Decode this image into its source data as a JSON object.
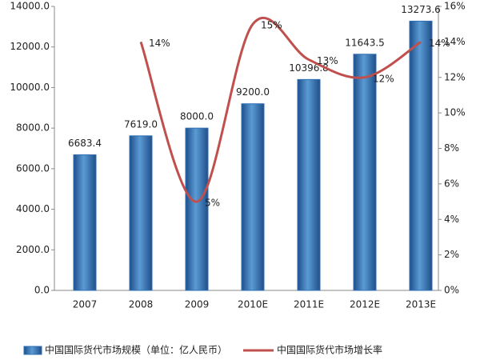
{
  "chart_data": {
    "type": "bar-line",
    "categories": [
      "2007",
      "2008",
      "2009",
      "2010E",
      "2011E",
      "2012E",
      "2013E"
    ],
    "series": [
      {
        "name": "中国国际货代市场规模（单位：亿人民币）",
        "type": "bar",
        "color": "#2f6fb5",
        "values": [
          6683.4,
          7619,
          8000,
          9200,
          10396.8,
          11643.5,
          13273.6
        ],
        "value_labels": [
          "6683.4",
          "7619.0",
          "8000.0",
          "9200.0",
          "10396.8",
          "11643.5",
          "13273.6"
        ]
      },
      {
        "name": "中国国际货代市场增长率",
        "type": "line",
        "axis": "y2",
        "color": "#c0504d",
        "values": [
          null,
          14,
          5,
          15,
          13,
          12,
          14
        ],
        "value_labels": [
          null,
          "14%",
          "5%",
          "15%",
          "13%",
          "12%",
          "14%"
        ]
      }
    ],
    "ylim": [
      0,
      14000
    ],
    "yticks": [
      {
        "value": 0,
        "label": "0.0"
      },
      {
        "value": 2000,
        "label": "2000.0"
      },
      {
        "value": 4000,
        "label": "4000.0"
      },
      {
        "value": 6000,
        "label": "6000.0"
      },
      {
        "value": 8000,
        "label": "8000.0"
      },
      {
        "value": 10000,
        "label": "10000.0"
      },
      {
        "value": 12000,
        "label": "12000.0"
      },
      {
        "value": 14000,
        "label": "14000.0"
      }
    ],
    "y2lim": [
      0,
      16
    ],
    "y2ticks": [
      {
        "value": 0,
        "label": "0%"
      },
      {
        "value": 2,
        "label": "2%"
      },
      {
        "value": 4,
        "label": "4%"
      },
      {
        "value": 6,
        "label": "6%"
      },
      {
        "value": 8,
        "label": "8%"
      },
      {
        "value": 10,
        "label": "10%"
      },
      {
        "value": 12,
        "label": "12%"
      },
      {
        "value": 14,
        "label": "14%"
      },
      {
        "value": 16,
        "label": "16%"
      }
    ],
    "legend": "bottom"
  }
}
